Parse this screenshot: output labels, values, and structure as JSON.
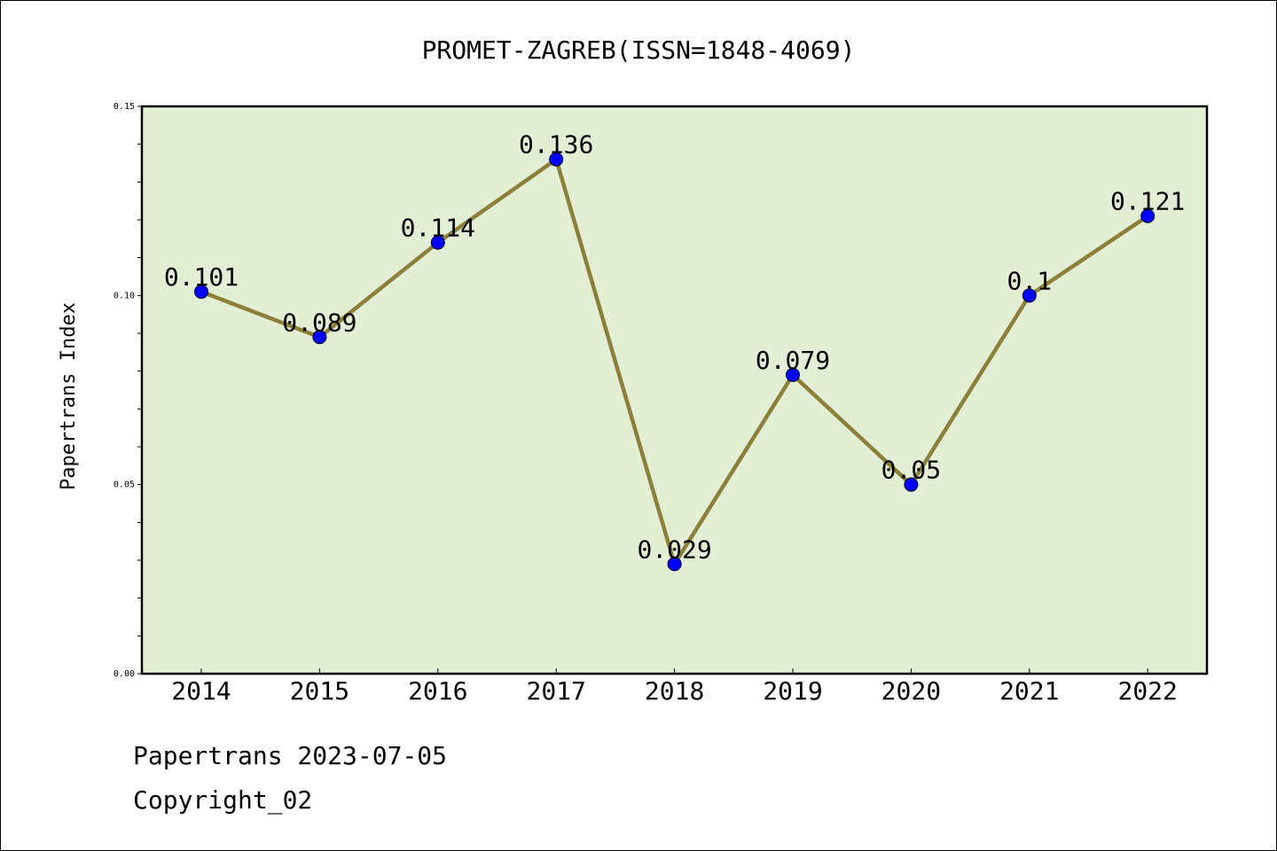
{
  "chart_data": {
    "type": "line",
    "title": "PROMET-ZAGREB(ISSN=1848-4069)",
    "xlabel": "",
    "ylabel": "Papertrans Index",
    "categories": [
      "2014",
      "2015",
      "2016",
      "2017",
      "2018",
      "2019",
      "2020",
      "2021",
      "2022"
    ],
    "values": [
      0.101,
      0.089,
      0.114,
      0.136,
      0.029,
      0.079,
      0.05,
      0.1,
      0.121
    ],
    "data_labels": [
      "0.101",
      "0.089",
      "0.114",
      "0.136",
      "0.029",
      "0.079",
      "0.05",
      "0.1",
      "0.121"
    ],
    "ylim": [
      0,
      0.15
    ],
    "yticks": [
      "0.00",
      "0.05",
      "0.10",
      "0.15"
    ],
    "grid": false,
    "colors": {
      "plot_background": "#e2efd5",
      "line": "#8c7f3a",
      "marker": "#0000ff"
    }
  },
  "footer": {
    "line1": "Papertrans 2023-07-05",
    "line2": "Copyright_02"
  }
}
